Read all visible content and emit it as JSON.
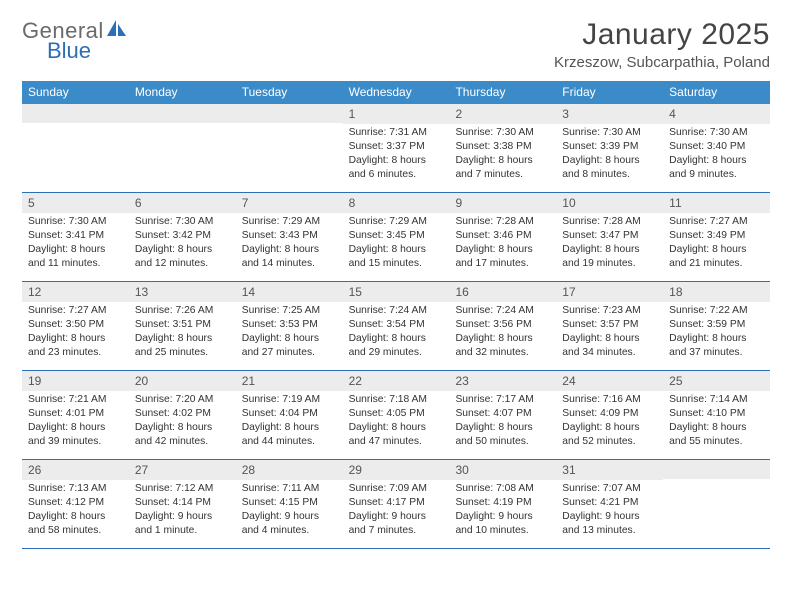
{
  "logo": {
    "text1": "General",
    "text2": "Blue"
  },
  "title": "January 2025",
  "location": "Krzeszow, Subcarpathia, Poland",
  "colors": {
    "header_bg": "#3b8bc9",
    "band_bg": "#ececec",
    "rule": "#2d6fb5",
    "text": "#333333"
  },
  "day_headers": [
    "Sunday",
    "Monday",
    "Tuesday",
    "Wednesday",
    "Thursday",
    "Friday",
    "Saturday"
  ],
  "weeks": [
    [
      {
        "n": "",
        "sr": "",
        "ss": "",
        "dl": ""
      },
      {
        "n": "",
        "sr": "",
        "ss": "",
        "dl": ""
      },
      {
        "n": "",
        "sr": "",
        "ss": "",
        "dl": ""
      },
      {
        "n": "1",
        "sr": "Sunrise: 7:31 AM",
        "ss": "Sunset: 3:37 PM",
        "dl": "Daylight: 8 hours and 6 minutes."
      },
      {
        "n": "2",
        "sr": "Sunrise: 7:30 AM",
        "ss": "Sunset: 3:38 PM",
        "dl": "Daylight: 8 hours and 7 minutes."
      },
      {
        "n": "3",
        "sr": "Sunrise: 7:30 AM",
        "ss": "Sunset: 3:39 PM",
        "dl": "Daylight: 8 hours and 8 minutes."
      },
      {
        "n": "4",
        "sr": "Sunrise: 7:30 AM",
        "ss": "Sunset: 3:40 PM",
        "dl": "Daylight: 8 hours and 9 minutes."
      }
    ],
    [
      {
        "n": "5",
        "sr": "Sunrise: 7:30 AM",
        "ss": "Sunset: 3:41 PM",
        "dl": "Daylight: 8 hours and 11 minutes."
      },
      {
        "n": "6",
        "sr": "Sunrise: 7:30 AM",
        "ss": "Sunset: 3:42 PM",
        "dl": "Daylight: 8 hours and 12 minutes."
      },
      {
        "n": "7",
        "sr": "Sunrise: 7:29 AM",
        "ss": "Sunset: 3:43 PM",
        "dl": "Daylight: 8 hours and 14 minutes."
      },
      {
        "n": "8",
        "sr": "Sunrise: 7:29 AM",
        "ss": "Sunset: 3:45 PM",
        "dl": "Daylight: 8 hours and 15 minutes."
      },
      {
        "n": "9",
        "sr": "Sunrise: 7:28 AM",
        "ss": "Sunset: 3:46 PM",
        "dl": "Daylight: 8 hours and 17 minutes."
      },
      {
        "n": "10",
        "sr": "Sunrise: 7:28 AM",
        "ss": "Sunset: 3:47 PM",
        "dl": "Daylight: 8 hours and 19 minutes."
      },
      {
        "n": "11",
        "sr": "Sunrise: 7:27 AM",
        "ss": "Sunset: 3:49 PM",
        "dl": "Daylight: 8 hours and 21 minutes."
      }
    ],
    [
      {
        "n": "12",
        "sr": "Sunrise: 7:27 AM",
        "ss": "Sunset: 3:50 PM",
        "dl": "Daylight: 8 hours and 23 minutes."
      },
      {
        "n": "13",
        "sr": "Sunrise: 7:26 AM",
        "ss": "Sunset: 3:51 PM",
        "dl": "Daylight: 8 hours and 25 minutes."
      },
      {
        "n": "14",
        "sr": "Sunrise: 7:25 AM",
        "ss": "Sunset: 3:53 PM",
        "dl": "Daylight: 8 hours and 27 minutes."
      },
      {
        "n": "15",
        "sr": "Sunrise: 7:24 AM",
        "ss": "Sunset: 3:54 PM",
        "dl": "Daylight: 8 hours and 29 minutes."
      },
      {
        "n": "16",
        "sr": "Sunrise: 7:24 AM",
        "ss": "Sunset: 3:56 PM",
        "dl": "Daylight: 8 hours and 32 minutes."
      },
      {
        "n": "17",
        "sr": "Sunrise: 7:23 AM",
        "ss": "Sunset: 3:57 PM",
        "dl": "Daylight: 8 hours and 34 minutes."
      },
      {
        "n": "18",
        "sr": "Sunrise: 7:22 AM",
        "ss": "Sunset: 3:59 PM",
        "dl": "Daylight: 8 hours and 37 minutes."
      }
    ],
    [
      {
        "n": "19",
        "sr": "Sunrise: 7:21 AM",
        "ss": "Sunset: 4:01 PM",
        "dl": "Daylight: 8 hours and 39 minutes."
      },
      {
        "n": "20",
        "sr": "Sunrise: 7:20 AM",
        "ss": "Sunset: 4:02 PM",
        "dl": "Daylight: 8 hours and 42 minutes."
      },
      {
        "n": "21",
        "sr": "Sunrise: 7:19 AM",
        "ss": "Sunset: 4:04 PM",
        "dl": "Daylight: 8 hours and 44 minutes."
      },
      {
        "n": "22",
        "sr": "Sunrise: 7:18 AM",
        "ss": "Sunset: 4:05 PM",
        "dl": "Daylight: 8 hours and 47 minutes."
      },
      {
        "n": "23",
        "sr": "Sunrise: 7:17 AM",
        "ss": "Sunset: 4:07 PM",
        "dl": "Daylight: 8 hours and 50 minutes."
      },
      {
        "n": "24",
        "sr": "Sunrise: 7:16 AM",
        "ss": "Sunset: 4:09 PM",
        "dl": "Daylight: 8 hours and 52 minutes."
      },
      {
        "n": "25",
        "sr": "Sunrise: 7:14 AM",
        "ss": "Sunset: 4:10 PM",
        "dl": "Daylight: 8 hours and 55 minutes."
      }
    ],
    [
      {
        "n": "26",
        "sr": "Sunrise: 7:13 AM",
        "ss": "Sunset: 4:12 PM",
        "dl": "Daylight: 8 hours and 58 minutes."
      },
      {
        "n": "27",
        "sr": "Sunrise: 7:12 AM",
        "ss": "Sunset: 4:14 PM",
        "dl": "Daylight: 9 hours and 1 minute."
      },
      {
        "n": "28",
        "sr": "Sunrise: 7:11 AM",
        "ss": "Sunset: 4:15 PM",
        "dl": "Daylight: 9 hours and 4 minutes."
      },
      {
        "n": "29",
        "sr": "Sunrise: 7:09 AM",
        "ss": "Sunset: 4:17 PM",
        "dl": "Daylight: 9 hours and 7 minutes."
      },
      {
        "n": "30",
        "sr": "Sunrise: 7:08 AM",
        "ss": "Sunset: 4:19 PM",
        "dl": "Daylight: 9 hours and 10 minutes."
      },
      {
        "n": "31",
        "sr": "Sunrise: 7:07 AM",
        "ss": "Sunset: 4:21 PM",
        "dl": "Daylight: 9 hours and 13 minutes."
      },
      {
        "n": "",
        "sr": "",
        "ss": "",
        "dl": ""
      }
    ]
  ]
}
